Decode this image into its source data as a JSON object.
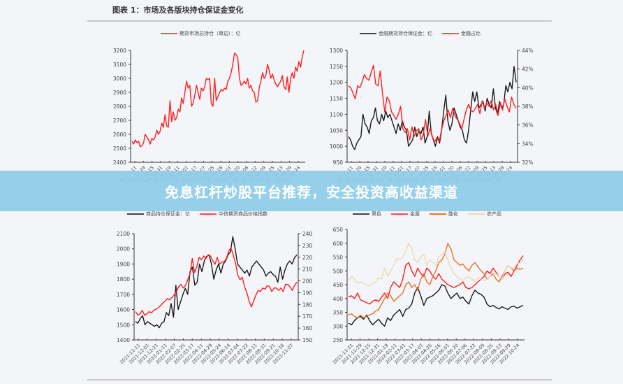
{
  "page": {
    "title": "图表 1：市场及各版块持仓保证金变化"
  },
  "banner": {
    "text": "免息杠杆炒股平台推荐，安全投资高收益渠道",
    "color": "#8ccbe8"
  },
  "colors": {
    "red": "#ff1f1f",
    "black": "#1a1a1a",
    "orange": "#e8732a",
    "beige": "#ecd9b4"
  },
  "chart_data": [
    {
      "type": "line",
      "id": "total",
      "title": "",
      "legend": [
        "期货市场总持仓（单边）：亿"
      ],
      "ylim": [
        2400,
        3200
      ],
      "yticks": [
        2400,
        2500,
        2600,
        2700,
        2800,
        2900,
        3000,
        3100,
        3200
      ],
      "x_ticks": [
        "2021-11-11",
        "2021-11-29",
        "2021-12-15",
        "2021-12-31",
        "2022-01-19",
        "2022-02-11",
        "2022-03-01",
        "2022-03-17",
        "2022-04-07",
        "2022-04-25",
        "2022-05-16",
        "2022-06-01",
        "2022-06-20",
        "2022-07-06",
        "2022-07-22",
        "2022-08-09",
        "2022-08-25",
        "2022-09-13",
        "2022-09-29",
        "2022-10-24"
      ],
      "series": [
        {
          "name": "期货市场总持仓（单边）：亿",
          "color": "#ff1f1f",
          "axis": "left",
          "values": [
            2550,
            2530,
            2560,
            2540,
            2550,
            2510,
            2520,
            2540,
            2600,
            2580,
            2560,
            2530,
            2570,
            2560,
            2580,
            2630,
            2600,
            2620,
            2680,
            2650,
            2740,
            2660,
            2650,
            2840,
            2690,
            2760,
            2700,
            2720,
            2780,
            2760,
            2860,
            2820,
            2900,
            2980,
            2930,
            2950,
            2800,
            2820,
            2880,
            2950,
            2900,
            2850,
            2930,
            2910,
            2940,
            3000,
            2990,
            3000,
            2820,
            2800,
            3000,
            2840,
            2870,
            2900,
            2920,
            2910,
            2930,
            2920,
            2980,
            3000,
            3040,
            3100,
            3180,
            3170,
            3150,
            3000,
            2950,
            2960,
            2980,
            2960,
            3000,
            2930,
            2950,
            2910,
            2900,
            2830,
            2840,
            2930,
            2980,
            3040,
            3000,
            3020,
            3100,
            3060,
            3000,
            3030,
            2990,
            2960,
            2940,
            2960,
            2980,
            3020,
            2940,
            2920,
            3010,
            2900,
            3000,
            3040,
            3000,
            3080,
            3050,
            3120,
            3080,
            3150,
            3200
          ]
        }
      ]
    },
    {
      "type": "line",
      "id": "finance",
      "legend": [
        "金融期货持仓保证金：亿",
        "金融占比"
      ],
      "ylim": [
        950,
        1300
      ],
      "yticks": [
        950,
        1000,
        1050,
        1100,
        1150,
        1200,
        1250,
        1300
      ],
      "y2lim": [
        32,
        44
      ],
      "y2ticks": [
        "32%",
        "34%",
        "36%",
        "38%",
        "40%",
        "42%",
        "44%"
      ],
      "x_ticks": [
        "2021-11-11",
        "2021-11-29",
        "2021-12-15",
        "2021-12-31",
        "2022-01-19",
        "2022-02-11",
        "2022-03-01",
        "2022-03-17",
        "2022-04-07",
        "2022-04-25",
        "2022-05-16",
        "2022-06-01",
        "2022-06-20",
        "2022-07-06",
        "2022-07-22",
        "2022-08-09",
        "2022-08-25",
        "2022-09-13",
        "2022-09-29",
        "2022-10-24"
      ],
      "series": [
        {
          "name": "金融期货持仓保证金：亿",
          "color": "#1a1a1a",
          "axis": "left",
          "values": [
            1030,
            1020,
            1000,
            990,
            1010,
            1020,
            1030,
            1100,
            1070,
            1060,
            1040,
            1080,
            1090,
            1120,
            1080,
            1070,
            1100,
            1080,
            1110,
            1090,
            1100,
            1080,
            1060,
            1040,
            1070,
            1050,
            1080,
            1060,
            1050,
            1000,
            1010,
            1020,
            1060,
            1030,
            1050,
            1040,
            1060,
            1010,
            1030,
            1110,
            1040,
            1020,
            1000,
            1030,
            1010,
            1050,
            1110,
            1160,
            1080,
            1050,
            1070,
            1120,
            1100,
            1080,
            1060,
            1050,
            1020,
            1010,
            1050,
            1110,
            1170,
            1140,
            1170,
            1120,
            1130,
            1140,
            1110,
            1150,
            1130,
            1120,
            1180,
            1120,
            1100,
            1140,
            1120,
            1130,
            1190,
            1170,
            1200,
            1180,
            1250,
            1200
          ]
        },
        {
          "name": "金融占比",
          "color": "#ff1f1f",
          "axis": "right",
          "values": [
            40.2,
            40.0,
            39.4,
            38.8,
            40.2,
            40.0,
            40.6,
            41.4,
            41.0,
            40.8,
            41.6,
            42.4,
            40.4,
            40.2,
            41.8,
            39.4,
            37.4,
            39.0,
            38.6,
            37.4,
            37.0,
            36.6,
            37.2,
            38.0,
            35.6,
            35.2,
            35.6,
            34.4,
            35.8,
            34.8,
            35.4,
            35.6,
            34.4,
            35.0,
            36.6,
            34.8,
            35.6,
            34.8,
            34.2,
            34.6,
            34.2,
            35.4,
            36.4,
            37.0,
            37.6,
            36.8,
            37.8,
            37.0,
            36.6,
            36.2,
            35.6,
            36.6,
            37.6,
            38.2,
            37.6,
            37.4,
            37.8,
            38.2,
            37.2,
            38.6,
            37.8,
            38.4,
            38.0,
            38.6,
            37.6,
            38.2,
            37.0,
            38.4,
            37.6,
            38.8,
            38.0,
            37.4,
            39.0,
            38.2,
            37.8
          ]
        }
      ]
    },
    {
      "type": "line",
      "id": "commodity",
      "legend": [
        "商品持仓保证金：亿",
        "中信期货商品价格指数"
      ],
      "ylim": [
        1400,
        2100
      ],
      "yticks": [
        1400,
        1500,
        1600,
        1700,
        1800,
        1900,
        2000,
        2100
      ],
      "y2lim": [
        150,
        240
      ],
      "y2ticks": [
        150,
        160,
        170,
        180,
        190,
        200,
        210,
        220,
        230,
        240
      ],
      "x_ticks": [
        "2021-11-11",
        "2021-12-01",
        "2021-12-21",
        "2022-01-11",
        "2022-02-07",
        "2022-02-25",
        "2022-03-17",
        "2022-04-11",
        "2022-04-29",
        "2022-05-24",
        "2022-06-14",
        "2022-07-04",
        "2022-07-22",
        "2022-08-11",
        "2022-08-31",
        "2022-09-21",
        "2022-10-18",
        "2022-11-07"
      ],
      "series": [
        {
          "name": "商品持仓保证金：亿",
          "color": "#1a1a1a",
          "axis": "left",
          "values": [
            1520,
            1510,
            1540,
            1560,
            1500,
            1520,
            1510,
            1500,
            1490,
            1500,
            1480,
            1510,
            1520,
            1580,
            1560,
            1640,
            1550,
            1760,
            1600,
            1650,
            1700,
            1740,
            1700,
            1850,
            1880,
            1760,
            1780,
            1900,
            1850,
            1920,
            1950,
            1960,
            1900,
            1800,
            1860,
            1900,
            1840,
            1900,
            1920,
            1960,
            1980,
            2080,
            2000,
            1900,
            1880,
            1860,
            1840,
            1860,
            1820,
            1880,
            1900,
            1920,
            1900,
            1880,
            1860,
            1820,
            1840,
            1850,
            1830,
            1820,
            1780,
            1880,
            1800,
            1860,
            1900,
            1920,
            1900,
            1940,
            1960
          ]
        },
        {
          "name": "中信期货商品价格指数",
          "color": "#ff1f1f",
          "axis": "right",
          "values": [
            174,
            171,
            172,
            175,
            171,
            172,
            174,
            173,
            175,
            176,
            177,
            179,
            181,
            183,
            185,
            184,
            186,
            188,
            191,
            195,
            197,
            194,
            196,
            201,
            206,
            219,
            207,
            212,
            220,
            218,
            221,
            219,
            222,
            221,
            217,
            214,
            220,
            214,
            216,
            216,
            219,
            225,
            228,
            222,
            215,
            205,
            201,
            203,
            195,
            190,
            183,
            178,
            183,
            188,
            192,
            191,
            194,
            193,
            196,
            195,
            191,
            194,
            194,
            192,
            194,
            191,
            197,
            197,
            195,
            192,
            196,
            199
          ]
        }
      ]
    },
    {
      "type": "line",
      "id": "sectors",
      "legend": [
        "黑色",
        "金属",
        "能化",
        "农产品"
      ],
      "ylim": [
        250,
        650
      ],
      "yticks": [
        250,
        300,
        350,
        400,
        450,
        500,
        550,
        600,
        650
      ],
      "x_ticks": [
        "2021-11-11",
        "2021-11-29",
        "2021-12-15",
        "2021-12-31",
        "2022-01-19",
        "2022-02-11",
        "2022-03-01",
        "2022-03-17",
        "2022-04-07",
        "2022-04-25",
        "2022-05-16",
        "2022-06-01",
        "2022-06-20",
        "2022-07-06",
        "2022-07-22",
        "2022-08-09",
        "2022-08-25",
        "2022-09-13",
        "2022-09-29",
        "2022-10-24"
      ],
      "series": [
        {
          "name": "黑色",
          "color": "#1a1a1a",
          "values": [
            310,
            305,
            320,
            330,
            335,
            325,
            340,
            320,
            305,
            315,
            325,
            310,
            300,
            330,
            320,
            340,
            350,
            360,
            335,
            360,
            365,
            380,
            420,
            440,
            410,
            375,
            400,
            405,
            410,
            420,
            430,
            450,
            445,
            420,
            400,
            410,
            420,
            400,
            405,
            390,
            380,
            410,
            430,
            420,
            415,
            405,
            380,
            370,
            375,
            368,
            362,
            370,
            365,
            360,
            370,
            372,
            365,
            370,
            375
          ]
        },
        {
          "name": "金属",
          "color": "#ff1f1f",
          "values": [
            405,
            410,
            400,
            420,
            395,
            390,
            385,
            380,
            390,
            395,
            390,
            405,
            420,
            400,
            440,
            460,
            450,
            440,
            470,
            520,
            530,
            500,
            480,
            510,
            490,
            480,
            510,
            500,
            480,
            470,
            490,
            470,
            460,
            450,
            445,
            440,
            445,
            450,
            460,
            440,
            435,
            440,
            450,
            460,
            470,
            480,
            500,
            490,
            510,
            495,
            480,
            470,
            490,
            495,
            480,
            500,
            520,
            540,
            555
          ]
        },
        {
          "name": "能化",
          "color": "#e8732a",
          "values": [
            340,
            345,
            335,
            330,
            340,
            330,
            335,
            340,
            345,
            355,
            360,
            380,
            400,
            420,
            410,
            390,
            400,
            410,
            420,
            450,
            460,
            440,
            450,
            430,
            470,
            490,
            460,
            450,
            480,
            500,
            530,
            540,
            560,
            600,
            580,
            540,
            530,
            520,
            525,
            510,
            500,
            520,
            530,
            515,
            500,
            490,
            470,
            480,
            490,
            470,
            460,
            480,
            500,
            520,
            510,
            500,
            510,
            505,
            510
          ]
        },
        {
          "name": "农产品",
          "color": "#ecd9b4",
          "values": [
            465,
            480,
            470,
            455,
            460,
            455,
            450,
            445,
            455,
            460,
            475,
            470,
            510,
            480,
            500,
            520,
            545,
            540,
            550,
            570,
            600,
            580,
            540,
            530,
            550,
            560,
            520,
            540,
            530,
            520,
            550,
            560,
            570,
            540,
            510,
            490,
            480,
            470,
            465,
            475,
            480,
            470,
            460,
            475,
            470,
            465,
            470,
            480,
            485,
            490,
            480,
            470,
            500,
            520,
            510,
            515,
            525,
            530,
            540
          ]
        }
      ]
    }
  ]
}
